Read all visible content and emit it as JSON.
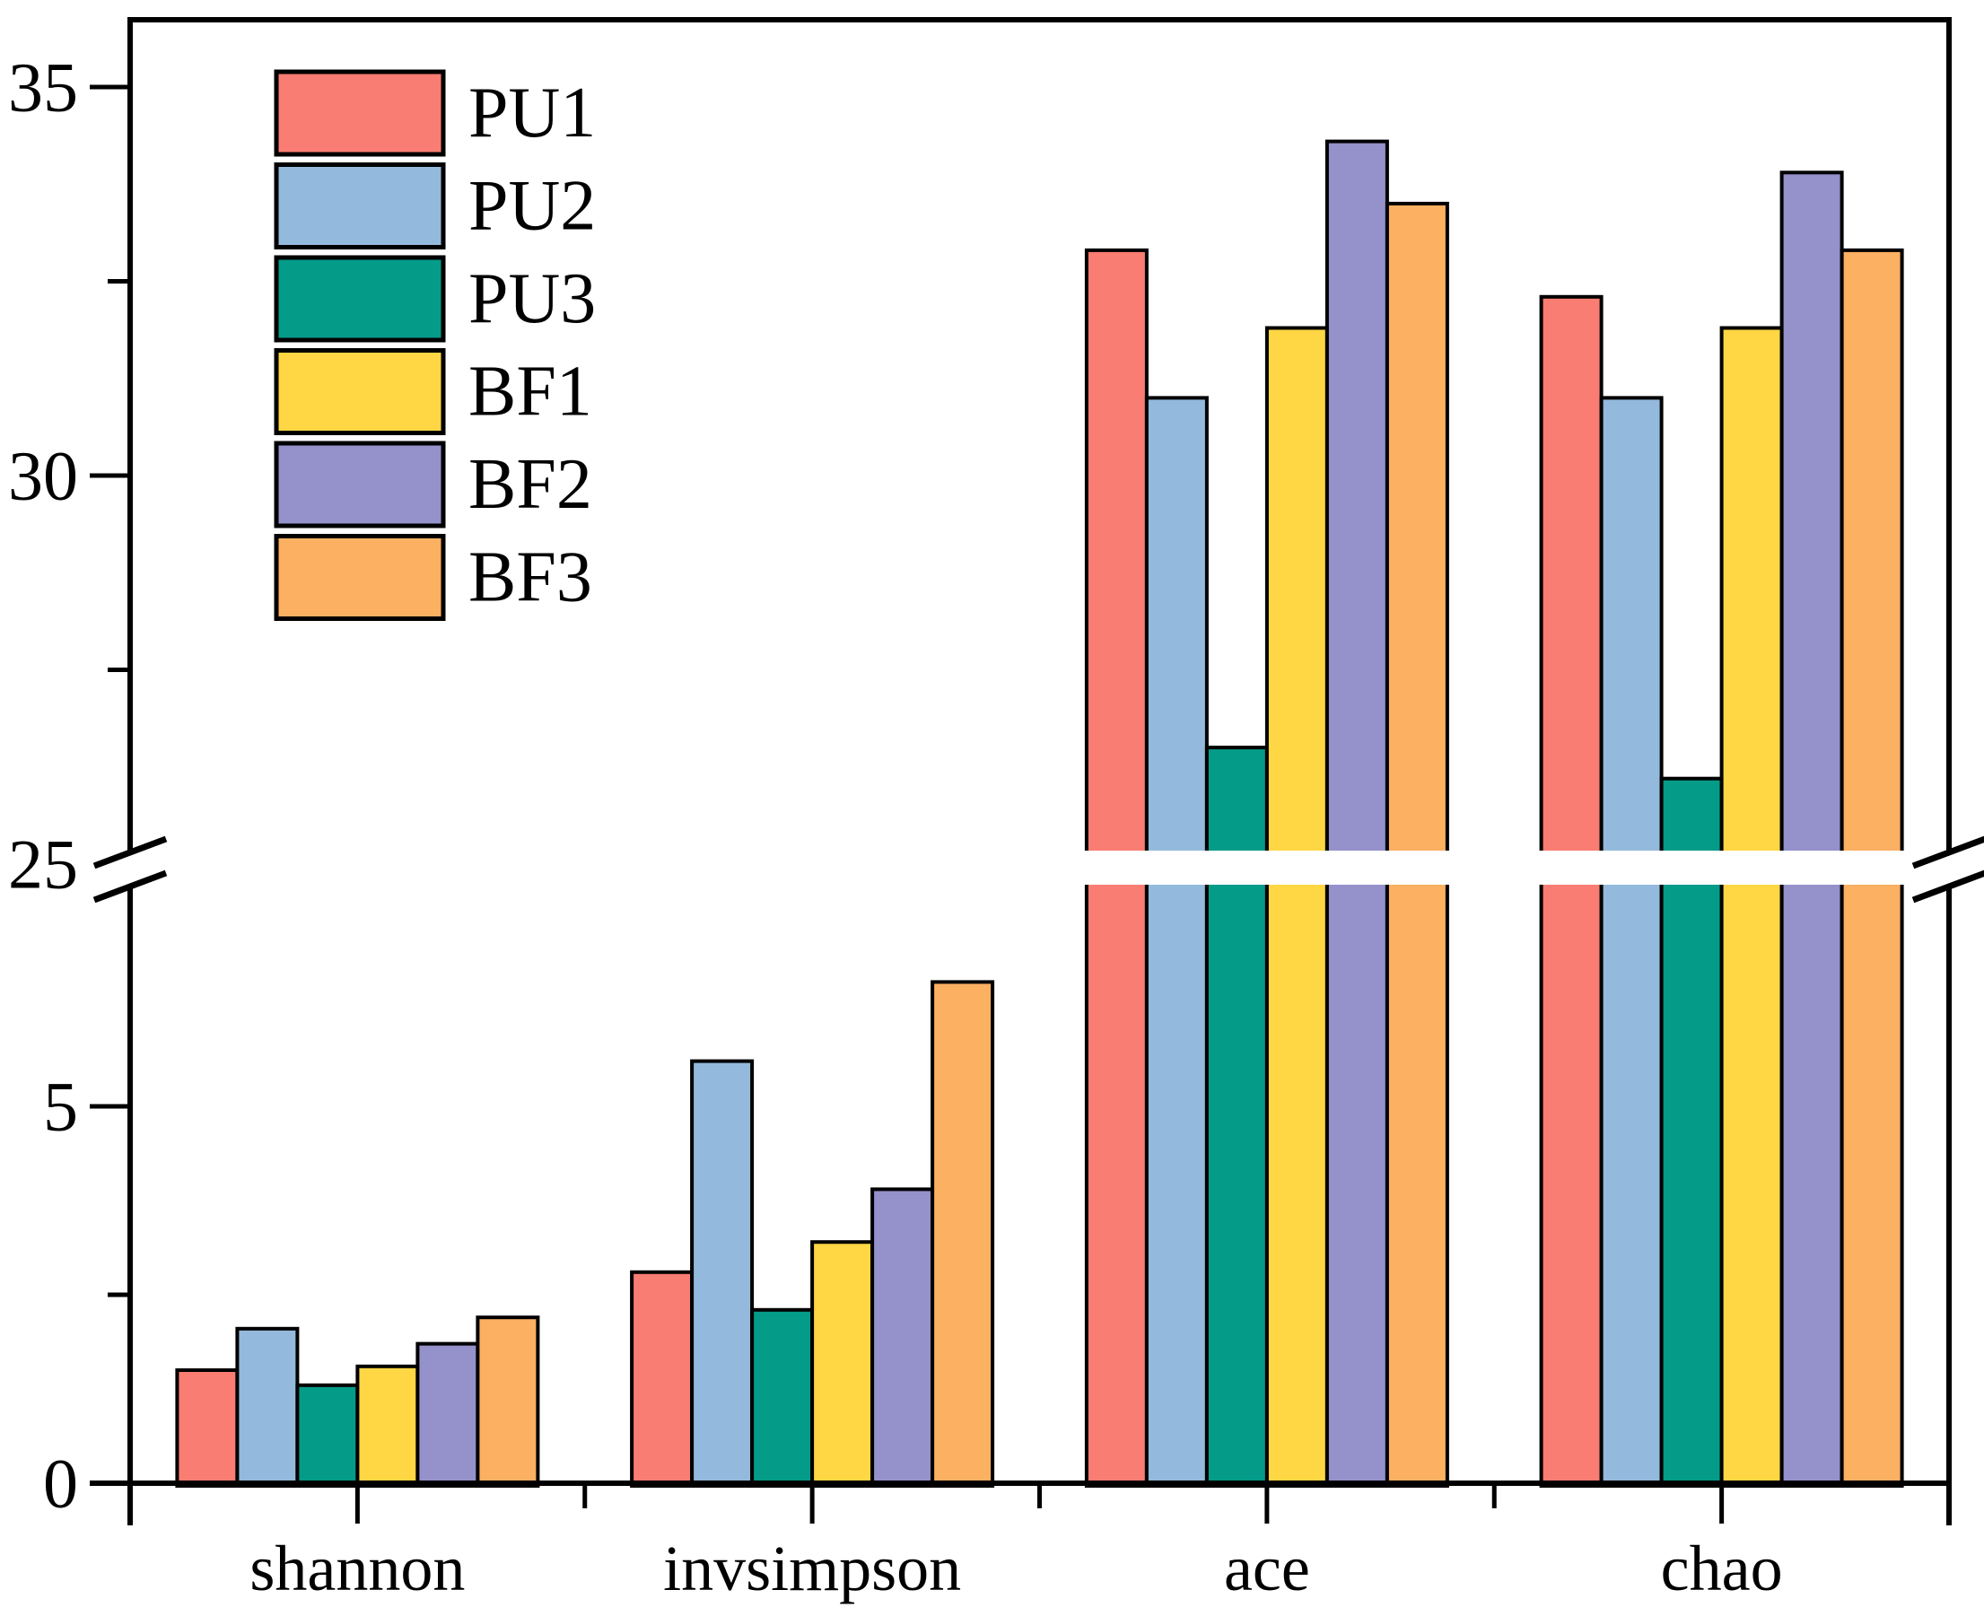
{
  "chart_data": {
    "type": "bar",
    "title": "",
    "xlabel": "",
    "ylabel": "",
    "categories": [
      "shannon",
      "invsimpson",
      "ace",
      "chao"
    ],
    "series": [
      {
        "name": "PU1",
        "color": "#F97D72",
        "values": [
          1.5,
          2.8,
          32.9,
          32.3
        ]
      },
      {
        "name": "PU2",
        "color": "#93BADC",
        "values": [
          2.05,
          5.6,
          31.0,
          31.0
        ]
      },
      {
        "name": "PU3",
        "color": "#049B89",
        "values": [
          1.3,
          2.3,
          26.5,
          26.1
        ]
      },
      {
        "name": "BF1",
        "color": "#FFD643",
        "values": [
          1.55,
          3.2,
          31.9,
          31.9
        ]
      },
      {
        "name": "BF2",
        "color": "#9591CB",
        "values": [
          1.85,
          3.9,
          34.3,
          33.9
        ]
      },
      {
        "name": "BF3",
        "color": "#FBB062",
        "values": [
          2.2,
          6.65,
          33.5,
          32.9
        ]
      }
    ],
    "y_axis": {
      "broken": true,
      "lower_segment": {
        "range": [
          0,
          7.95
        ],
        "major_ticks": [
          0,
          5
        ],
        "minor_ticks": [
          2.5
        ],
        "tick_labels": [
          "0",
          "5"
        ]
      },
      "upper_segment": {
        "range": [
          25,
          35.9
        ],
        "major_ticks": [
          30,
          35
        ],
        "minor_ticks": [
          27.5,
          32.5
        ],
        "tick_labels": [
          "30",
          "35"
        ],
        "break_label": "25"
      }
    },
    "legend": {
      "position": "top-left-inside",
      "entries": [
        "PU1",
        "PU2",
        "PU3",
        "BF1",
        "BF2",
        "BF3"
      ]
    },
    "grid": false,
    "bar_outline_color": "#000000",
    "axis_color": "#000000",
    "background": "#FFFFFF"
  }
}
